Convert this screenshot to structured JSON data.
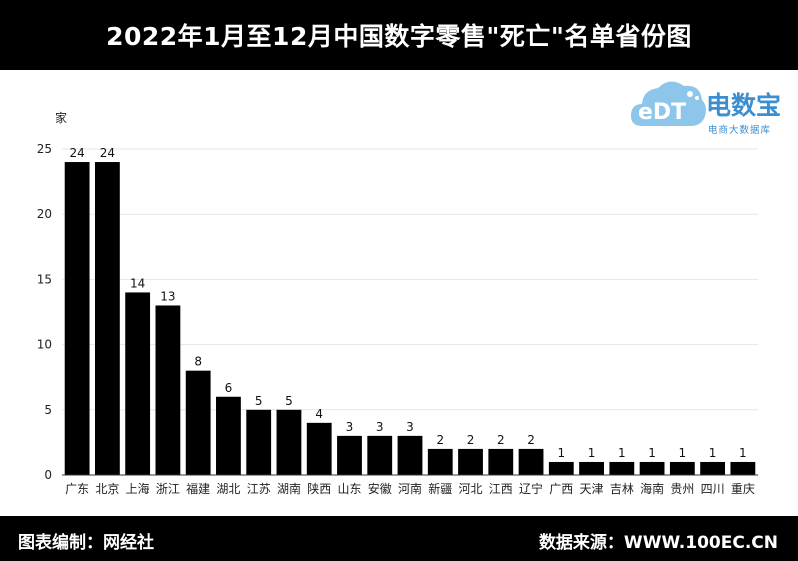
{
  "header": {
    "title": "2022年1月至12月中国数字零售\"死亡\"名单省份图"
  },
  "logo": {
    "cloud_text": "eDT",
    "brand": "电数宝",
    "brand_sub": "电商大数据库",
    "color": "#3b8fd1"
  },
  "footer": {
    "left": "图表编制：网经社",
    "right": "数据来源：WWW.100EC.CN"
  },
  "chart_data": {
    "type": "bar",
    "ylabel": "家",
    "ylim": [
      0,
      25
    ],
    "yticks": [
      0,
      5,
      10,
      15,
      20,
      25
    ],
    "grid": true,
    "bar_color": "#000000",
    "categories": [
      "广东",
      "北京",
      "上海",
      "浙江",
      "福建",
      "湖北",
      "江苏",
      "湖南",
      "陕西",
      "山东",
      "安徽",
      "河南",
      "新疆",
      "河北",
      "江西",
      "辽宁",
      "广西",
      "天津",
      "吉林",
      "海南",
      "贵州",
      "四川",
      "重庆"
    ],
    "values": [
      24,
      24,
      14,
      13,
      8,
      6,
      5,
      5,
      4,
      3,
      3,
      3,
      2,
      2,
      2,
      2,
      1,
      1,
      1,
      1,
      1,
      1,
      1
    ]
  }
}
